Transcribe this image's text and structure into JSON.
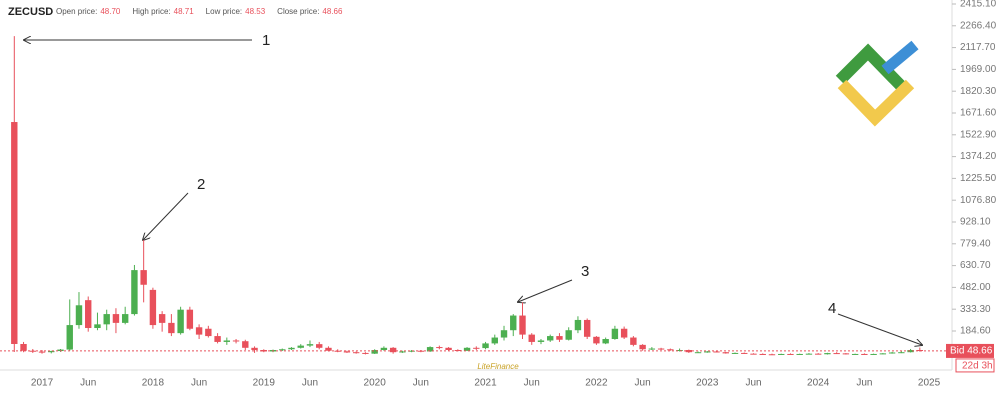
{
  "chart_data": {
    "type": "candlestick",
    "symbol": "ZECUSD",
    "quote": [
      {
        "label": "Open price:",
        "value": "48.70"
      },
      {
        "label": "High price:",
        "value": "48.71"
      },
      {
        "label": "Low price:",
        "value": "48.53"
      },
      {
        "label": "Close price:",
        "value": "48.66"
      }
    ],
    "up_color": "#4caf50",
    "down_color": "#e8505b",
    "ylim": [
      -81.4,
      2442.3
    ],
    "yticks": [
      {
        "value": 2415.1,
        "label": "2415.10"
      },
      {
        "value": 2266.4,
        "label": "2266.40"
      },
      {
        "value": 2117.7,
        "label": "2117.70"
      },
      {
        "value": 1969,
        "label": "1969.00"
      },
      {
        "value": 1820.3,
        "label": "1820.30"
      },
      {
        "value": 1671.6,
        "label": "1671.60"
      },
      {
        "value": 1522.9,
        "label": "1522.90"
      },
      {
        "value": 1374.2,
        "label": "1374.20"
      },
      {
        "value": 1225.5,
        "label": "1225.50"
      },
      {
        "value": 1076.8,
        "label": "1076.80"
      },
      {
        "value": 928.1,
        "label": "928.10"
      },
      {
        "value": 779.4,
        "label": "779.40"
      },
      {
        "value": 630.7,
        "label": "630.70"
      },
      {
        "value": 482,
        "label": "482.00"
      },
      {
        "value": 333.3,
        "label": "333.30"
      },
      {
        "value": 184.6,
        "label": "184.60"
      }
    ],
    "categories": [
      null,
      null,
      null,
      "2017",
      null,
      null,
      null,
      null,
      "Jun",
      null,
      null,
      null,
      null,
      null,
      null,
      "2018",
      null,
      null,
      null,
      null,
      "Jun",
      null,
      null,
      null,
      null,
      null,
      null,
      "2019",
      null,
      null,
      null,
      null,
      "Jun",
      null,
      null,
      null,
      null,
      null,
      null,
      "2020",
      null,
      null,
      null,
      null,
      "Jun",
      null,
      null,
      null,
      null,
      null,
      null,
      "2021",
      null,
      null,
      null,
      null,
      "Jun",
      null,
      null,
      null,
      null,
      null,
      null,
      "2022",
      null,
      null,
      null,
      null,
      "Jun",
      null,
      null,
      null,
      null,
      null,
      null,
      "2023",
      null,
      null,
      null,
      null,
      "Jun",
      null,
      null,
      null,
      null,
      null,
      null,
      "2024",
      null,
      null,
      null,
      null,
      "Jun",
      null,
      null,
      null,
      null,
      null,
      null,
      "2025"
    ],
    "open": [
      1610,
      96,
      50,
      44,
      40,
      48,
      58,
      225,
      395,
      205,
      230,
      300,
      240,
      300,
      600,
      465,
      300,
      240,
      170,
      330,
      210,
      200,
      150,
      110,
      120,
      115,
      70,
      55,
      45,
      55,
      60,
      70,
      85,
      95,
      70,
      50,
      45,
      40,
      35,
      30,
      55,
      70,
      40,
      45,
      50,
      45,
      75,
      70,
      55,
      50,
      70,
      68,
      100,
      140,
      190,
      290,
      160,
      110,
      120,
      150,
      125,
      190,
      260,
      145,
      100,
      130,
      200,
      140,
      90,
      60,
      65,
      60,
      55,
      55,
      40,
      40,
      45,
      40,
      32,
      35,
      30,
      28,
      26,
      25,
      28,
      26,
      28,
      30,
      26,
      34,
      32,
      26,
      28,
      24,
      28,
      32,
      38,
      40,
      55,
      null
    ],
    "high": [
      2196,
      110,
      62,
      55,
      50,
      62,
      400,
      450,
      420,
      310,
      330,
      340,
      350,
      635,
      805,
      480,
      320,
      300,
      350,
      350,
      230,
      220,
      170,
      140,
      130,
      125,
      80,
      60,
      58,
      65,
      75,
      95,
      120,
      110,
      80,
      60,
      50,
      45,
      40,
      60,
      80,
      75,
      50,
      55,
      55,
      80,
      85,
      75,
      60,
      75,
      80,
      110,
      160,
      220,
      300,
      380,
      170,
      130,
      160,
      170,
      210,
      285,
      270,
      150,
      140,
      220,
      215,
      150,
      95,
      75,
      70,
      65,
      65,
      58,
      45,
      48,
      50,
      42,
      38,
      38,
      33,
      32,
      30,
      30,
      32,
      30,
      34,
      34,
      36,
      40,
      34,
      30,
      32,
      30,
      34,
      42,
      48,
      62,
      72,
      null
    ],
    "low": [
      41,
      40,
      35,
      30,
      32,
      42,
      50,
      200,
      180,
      190,
      190,
      170,
      230,
      290,
      380,
      200,
      180,
      150,
      160,
      190,
      130,
      140,
      100,
      90,
      100,
      55,
      35,
      40,
      40,
      48,
      55,
      65,
      75,
      60,
      45,
      40,
      35,
      30,
      25,
      28,
      50,
      30,
      35,
      40,
      40,
      42,
      60,
      50,
      45,
      48,
      55,
      60,
      90,
      120,
      150,
      130,
      90,
      95,
      110,
      110,
      120,
      170,
      130,
      90,
      95,
      125,
      130,
      80,
      50,
      55,
      55,
      50,
      45,
      35,
      35,
      36,
      38,
      30,
      28,
      28,
      25,
      24,
      22,
      22,
      24,
      24,
      26,
      24,
      24,
      30,
      24,
      24,
      22,
      22,
      26,
      30,
      34,
      38,
      44,
      null
    ],
    "close": [
      96,
      50,
      44,
      40,
      48,
      58,
      225,
      360,
      205,
      230,
      300,
      240,
      300,
      600,
      500,
      225,
      240,
      170,
      330,
      200,
      160,
      150,
      110,
      120,
      115,
      70,
      55,
      45,
      55,
      60,
      70,
      85,
      95,
      70,
      50,
      45,
      40,
      35,
      30,
      55,
      70,
      40,
      45,
      50,
      45,
      75,
      70,
      55,
      50,
      70,
      68,
      100,
      140,
      190,
      290,
      160,
      110,
      120,
      150,
      125,
      190,
      260,
      145,
      100,
      130,
      200,
      140,
      90,
      60,
      65,
      60,
      55,
      55,
      40,
      40,
      45,
      40,
      32,
      35,
      30,
      28,
      26,
      25,
      28,
      26,
      28,
      30,
      26,
      34,
      32,
      26,
      28,
      24,
      28,
      32,
      38,
      40,
      55,
      50,
      null
    ],
    "price_line": {
      "value": 48.66,
      "label": "Bid 48.66"
    },
    "countdown": "22d 3h",
    "annotations": [
      "1",
      "2",
      "3",
      "4"
    ],
    "watermark": "LiteFinance"
  }
}
